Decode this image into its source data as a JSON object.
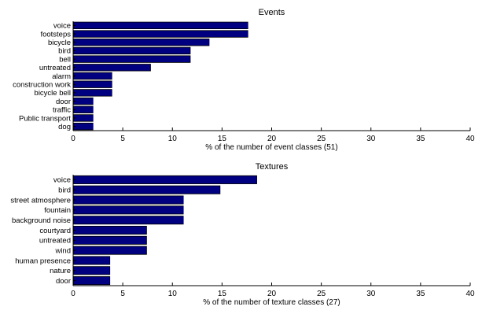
{
  "chart_data": [
    {
      "type": "bar",
      "orientation": "horizontal",
      "title": "Events",
      "xlabel": "% of the number of event classes (51)",
      "ylabel": "",
      "xlim": [
        0,
        40
      ],
      "xticks": [
        "0",
        "5",
        "10",
        "15",
        "20",
        "25",
        "30",
        "35",
        "40"
      ],
      "categories": [
        "voice",
        "footsteps",
        "bicycle",
        "bird",
        "bell",
        "untreated",
        "alarm",
        "construction work",
        "bicycle bell",
        "door",
        "traffic",
        "Public transport",
        "dog"
      ],
      "values": [
        17.6,
        17.6,
        13.7,
        11.8,
        11.8,
        7.8,
        3.9,
        3.9,
        3.9,
        2.0,
        2.0,
        2.0,
        2.0
      ],
      "bar_color": "#000080",
      "grid": false
    },
    {
      "type": "bar",
      "orientation": "horizontal",
      "title": "Textures",
      "xlabel": "% of the number of texture classes (27)",
      "ylabel": "",
      "xlim": [
        0,
        40
      ],
      "xticks": [
        "0",
        "5",
        "10",
        "15",
        "20",
        "25",
        "30",
        "35",
        "40"
      ],
      "categories": [
        "voice",
        "bird",
        "street atmosphere",
        "fountain",
        "background noise",
        "courtyard",
        "untreated",
        "wind",
        "human presence",
        "nature",
        "door"
      ],
      "values": [
        18.5,
        14.8,
        11.1,
        11.1,
        11.1,
        7.4,
        7.4,
        7.4,
        3.7,
        3.7,
        3.7
      ],
      "bar_color": "#000080",
      "grid": false
    }
  ]
}
